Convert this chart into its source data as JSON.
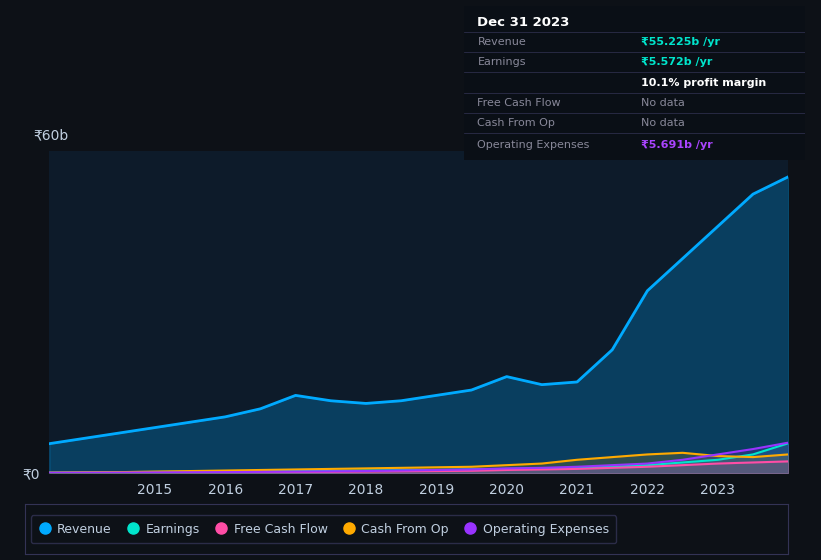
{
  "background_color": "#0d1117",
  "plot_bg_color": "#0d1b2a",
  "grid_color": "#1e2d3d",
  "text_color": "#c0cfe0",
  "title_color": "#ffffff",
  "ylim": [
    0,
    60
  ],
  "years": [
    2013.5,
    2014.0,
    2014.5,
    2015.0,
    2015.5,
    2016.0,
    2016.5,
    2017.0,
    2017.5,
    2018.0,
    2018.5,
    2019.0,
    2019.5,
    2020.0,
    2020.5,
    2021.0,
    2021.5,
    2022.0,
    2022.5,
    2023.0,
    2023.5,
    2024.0
  ],
  "revenue": [
    5.5,
    6.5,
    7.5,
    8.5,
    9.5,
    10.5,
    12.0,
    14.5,
    13.5,
    13.0,
    13.5,
    14.5,
    15.5,
    18.0,
    16.5,
    17.0,
    23.0,
    34.0,
    40.0,
    46.0,
    52.0,
    55.225
  ],
  "earnings": [
    0.1,
    0.15,
    0.2,
    0.25,
    0.3,
    0.35,
    0.4,
    0.45,
    0.4,
    0.5,
    0.55,
    0.6,
    0.7,
    0.8,
    0.9,
    1.0,
    1.2,
    1.5,
    2.0,
    2.5,
    3.5,
    5.572
  ],
  "free_cash_flow": [
    0.05,
    0.08,
    0.1,
    0.12,
    0.15,
    0.18,
    0.2,
    0.22,
    0.25,
    0.3,
    0.35,
    0.4,
    0.45,
    0.6,
    0.7,
    0.8,
    1.0,
    1.2,
    1.5,
    1.8,
    2.0,
    2.2
  ],
  "cash_from_op": [
    0.1,
    0.15,
    0.2,
    0.3,
    0.4,
    0.5,
    0.6,
    0.7,
    0.8,
    0.9,
    1.0,
    1.1,
    1.2,
    1.5,
    1.8,
    2.5,
    3.0,
    3.5,
    3.8,
    3.2,
    3.0,
    3.5
  ],
  "operating_expenses": [
    0.08,
    0.1,
    0.12,
    0.15,
    0.18,
    0.2,
    0.25,
    0.3,
    0.35,
    0.4,
    0.5,
    0.6,
    0.7,
    0.9,
    1.0,
    1.2,
    1.5,
    1.8,
    2.5,
    3.5,
    4.5,
    5.691
  ],
  "revenue_color": "#00aaff",
  "earnings_color": "#00e5cc",
  "free_cash_flow_color": "#ff4da6",
  "cash_from_op_color": "#ffaa00",
  "operating_expenses_color": "#9933ff",
  "info_box": {
    "date": "Dec 31 2023",
    "revenue_val": "₹55.225b /yr",
    "earnings_val": "₹5.572b /yr",
    "profit_margin": "10.1% profit margin",
    "free_cash_flow_val": "No data",
    "cash_from_op_val": "No data",
    "op_expenses_val": "₹5.691b /yr"
  },
  "legend_labels": [
    "Revenue",
    "Earnings",
    "Free Cash Flow",
    "Cash From Op",
    "Operating Expenses"
  ],
  "legend_colors": [
    "#00aaff",
    "#00e5cc",
    "#ff4da6",
    "#ffaa00",
    "#9933ff"
  ],
  "ytick_label_top": "₹60b",
  "ytick_label_zero": "₹0"
}
